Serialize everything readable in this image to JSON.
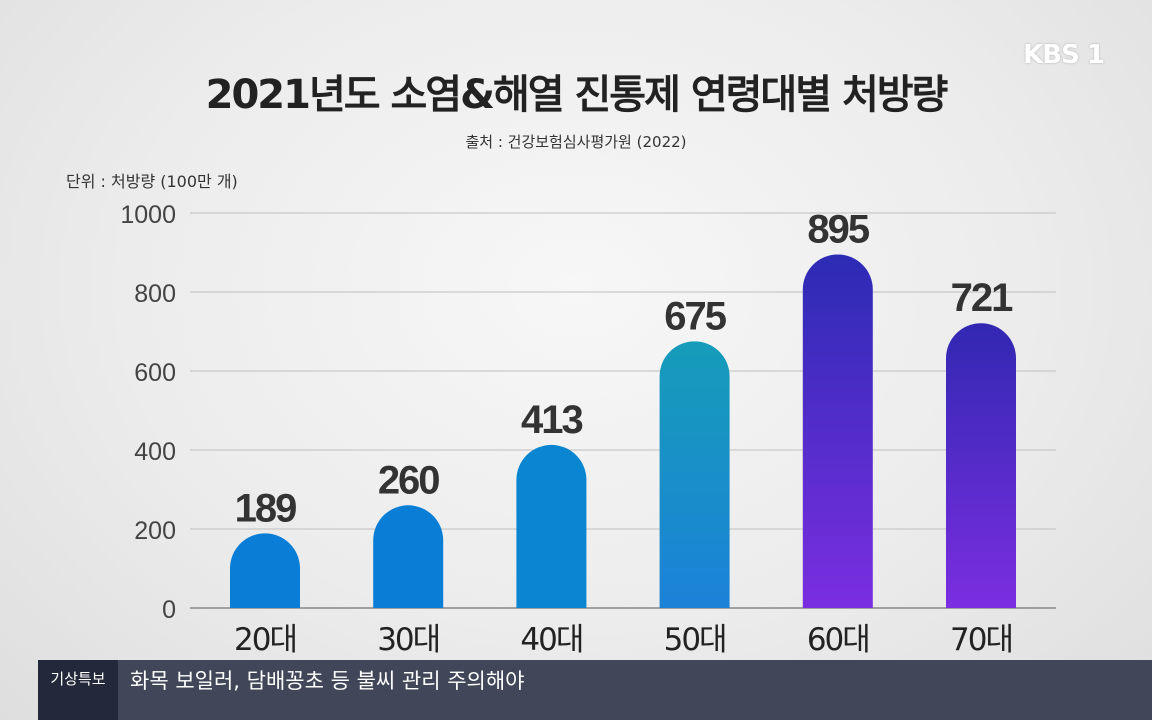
{
  "broadcaster_logo": "KBS 1",
  "chart_data": {
    "type": "bar",
    "title": "2021년도 소염&해열 진통제 연령대별 처방량",
    "source": "출처 : 건강보험심사평가원 (2022)",
    "unit_label": "단위 : 처방량 (100만 개)",
    "categories": [
      "20대",
      "30대",
      "40대",
      "50대",
      "60대",
      "70대"
    ],
    "values": [
      189,
      260,
      413,
      675,
      895,
      721
    ],
    "ylim": [
      0,
      1000
    ],
    "yticks": [
      0,
      200,
      400,
      600,
      800,
      1000
    ],
    "grid": true,
    "bar_colors": [
      [
        "#0a7ed6",
        "#0a7ed6"
      ],
      [
        "#0a7ed6",
        "#0a7ed6"
      ],
      [
        "#0a86d0",
        "#0a86d0"
      ],
      [
        "#169cb9",
        "#1b82d8"
      ],
      [
        "#2c2bb4",
        "#7a2ee0"
      ],
      [
        "#3128b2",
        "#7b2ee0"
      ]
    ]
  },
  "ticker": {
    "tag": "기상특보",
    "headline": "화목 보일러, 담배꽁초 등 불씨 관리 주의해야"
  }
}
